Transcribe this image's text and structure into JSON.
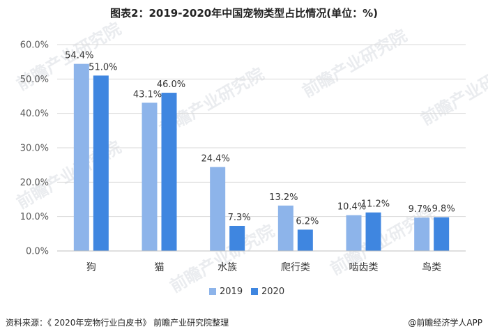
{
  "title": "图表2：2019-2020年中国宠物类型占比情况(单位：%)",
  "footer": {
    "source": "资料来源：《 2020年宠物行业白皮书》 前瞻产业研究院整理",
    "brand": "@前瞻经济学人APP"
  },
  "watermark": "前瞻产业研究院",
  "colors": {
    "s2019": "#8db4ea",
    "s2020": "#3f86e0",
    "grid": "#d9d9d9"
  },
  "chart_data": {
    "type": "bar",
    "title": "图表2：2019-2020年中国宠物类型占比情况(单位：%)",
    "categories": [
      "狗",
      "猫",
      "水族",
      "爬行类",
      "啮齿类",
      "鸟类"
    ],
    "series": [
      {
        "name": "2019",
        "values": [
          54.4,
          43.1,
          24.4,
          13.2,
          10.4,
          9.7
        ]
      },
      {
        "name": "2020",
        "values": [
          51.0,
          46.0,
          7.3,
          6.2,
          11.2,
          9.8
        ]
      }
    ],
    "yticks": [
      "0.0%",
      "10.0%",
      "20.0%",
      "30.0%",
      "40.0%",
      "50.0%",
      "60.0%"
    ],
    "ylim": [
      0,
      60
    ],
    "unit": "%",
    "legend_position": "bottom",
    "grid": true
  }
}
